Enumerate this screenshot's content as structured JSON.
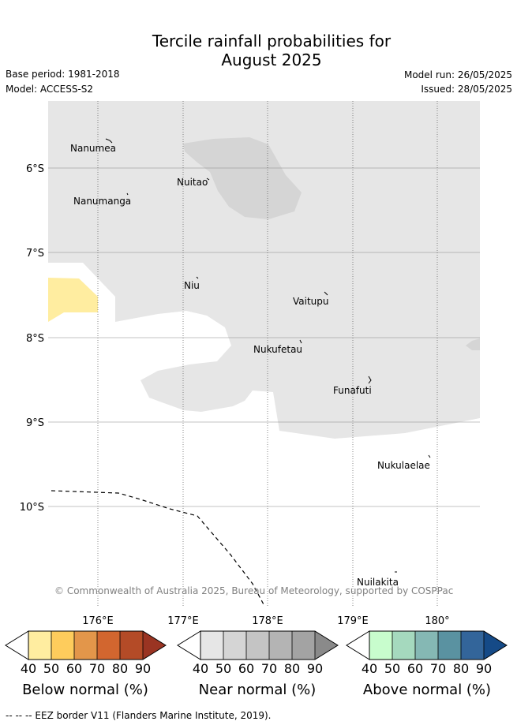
{
  "header": {
    "title_line1": "Tercile rainfall probabilities for",
    "title_line2": "August 2025",
    "base_period": "Base period: 1981-2018",
    "model": "Model: ACCESS-S2",
    "model_run": "Model run: 26/05/2025",
    "issued": "Issued: 28/05/2025"
  },
  "map": {
    "lat_labels": [
      "6°S",
      "7°S",
      "8°S",
      "9°S",
      "10°S"
    ],
    "lon_labels": [
      "176°E",
      "177°E",
      "178°E",
      "179°E",
      "180°"
    ],
    "islands": [
      {
        "id": "nanumea",
        "name": "Nanumea"
      },
      {
        "id": "nuitao",
        "name": "Nuitao"
      },
      {
        "id": "nanumanga",
        "name": "Nanumanga"
      },
      {
        "id": "niu",
        "name": "Niu"
      },
      {
        "id": "vaitupu",
        "name": "Vaitupu"
      },
      {
        "id": "nukufetau",
        "name": "Nukufetau"
      },
      {
        "id": "funafuti",
        "name": "Funafuti"
      },
      {
        "id": "nukulaelae",
        "name": "Nukulaelae"
      },
      {
        "id": "nuilakita",
        "name": "Nuilakita"
      }
    ],
    "copyright": "© Commonwealth of Australia 2025, Bureau of Meteorology, supported by COSPPac",
    "colors": {
      "near_normal_40": "#e6e6e6",
      "near_normal_50": "#d5d5d5",
      "below_normal_40": "#ffeda0"
    }
  },
  "legend": {
    "ticks": [
      "40",
      "50",
      "60",
      "70",
      "80",
      "90"
    ],
    "below": {
      "title": "Below normal (%)",
      "colors": [
        "#ffeda0",
        "#fecc5c",
        "#e3964a",
        "#d2662f",
        "#b44b27",
        "#9a3422"
      ]
    },
    "near": {
      "title": "Near normal (%)",
      "colors": [
        "#e6e6e6",
        "#d5d5d5",
        "#c4c4c4",
        "#b4b4b4",
        "#a3a3a3",
        "#8a8a8a"
      ]
    },
    "above": {
      "title": "Above normal (%)",
      "colors": [
        "#c8fdcd",
        "#a5d9be",
        "#85b8b4",
        "#5a92a1",
        "#33659a",
        "#154a87"
      ]
    }
  },
  "footer": {
    "eez_note": "--  --  -- EEZ border V11 (Flanders Marine Institute, 2019)."
  }
}
